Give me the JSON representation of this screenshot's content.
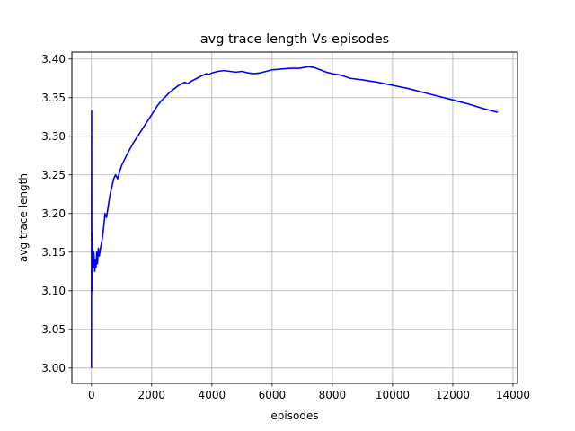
{
  "chart_data": {
    "type": "line",
    "title": "avg trace length Vs episodes",
    "xlabel": "episodes",
    "ylabel": "avg trace length",
    "xlim": [
      -650,
      14150
    ],
    "ylim": [
      2.98,
      3.409
    ],
    "xticks": [
      0,
      2000,
      4000,
      6000,
      8000,
      10000,
      12000,
      14000
    ],
    "xtick_labels": [
      "0",
      "2000",
      "4000",
      "6000",
      "8000",
      "10000",
      "12000",
      "14000"
    ],
    "yticks": [
      3.0,
      3.05,
      3.1,
      3.15,
      3.2,
      3.25,
      3.3,
      3.35,
      3.4
    ],
    "ytick_labels": [
      "3.00",
      "3.05",
      "3.10",
      "3.15",
      "3.20",
      "3.25",
      "3.30",
      "3.35",
      "3.40"
    ],
    "grid": true,
    "series": [
      {
        "color": "#0000ff",
        "x": [
          0,
          5,
          10,
          15,
          20,
          25,
          30,
          40,
          50,
          60,
          75,
          90,
          110,
          130,
          150,
          175,
          200,
          230,
          260,
          300,
          350,
          400,
          450,
          500,
          560,
          620,
          680,
          740,
          800,
          870,
          940,
          1000,
          1100,
          1200,
          1300,
          1400,
          1500,
          1600,
          1700,
          1800,
          1900,
          2000,
          2100,
          2200,
          2300,
          2400,
          2500,
          2600,
          2700,
          2800,
          2900,
          3000,
          3100,
          3200,
          3300,
          3400,
          3500,
          3600,
          3700,
          3800,
          3900,
          4000,
          4200,
          4400,
          4600,
          4800,
          5000,
          5200,
          5400,
          5600,
          5800,
          6000,
          6300,
          6600,
          6900,
          7200,
          7400,
          7600,
          7800,
          8000,
          8300,
          8600,
          9000,
          9500,
          10000,
          10500,
          11000,
          11500,
          12000,
          12500,
          13000,
          13500
        ],
        "y": [
          3.0,
          3.333,
          3.1,
          3.175,
          3.14,
          3.1,
          3.125,
          3.16,
          3.145,
          3.13,
          3.15,
          3.14,
          3.125,
          3.14,
          3.13,
          3.15,
          3.135,
          3.155,
          3.145,
          3.155,
          3.165,
          3.18,
          3.2,
          3.195,
          3.21,
          3.225,
          3.235,
          3.245,
          3.25,
          3.245,
          3.255,
          3.262,
          3.27,
          3.278,
          3.285,
          3.292,
          3.298,
          3.304,
          3.31,
          3.316,
          3.322,
          3.328,
          3.334,
          3.34,
          3.345,
          3.349,
          3.353,
          3.357,
          3.36,
          3.363,
          3.366,
          3.368,
          3.37,
          3.368,
          3.371,
          3.373,
          3.375,
          3.377,
          3.379,
          3.381,
          3.38,
          3.382,
          3.384,
          3.385,
          3.384,
          3.383,
          3.384,
          3.382,
          3.381,
          3.382,
          3.384,
          3.386,
          3.387,
          3.388,
          3.388,
          3.39,
          3.389,
          3.386,
          3.383,
          3.381,
          3.379,
          3.375,
          3.373,
          3.37,
          3.366,
          3.362,
          3.357,
          3.352,
          3.347,
          3.342,
          3.336,
          3.331
        ]
      }
    ]
  }
}
